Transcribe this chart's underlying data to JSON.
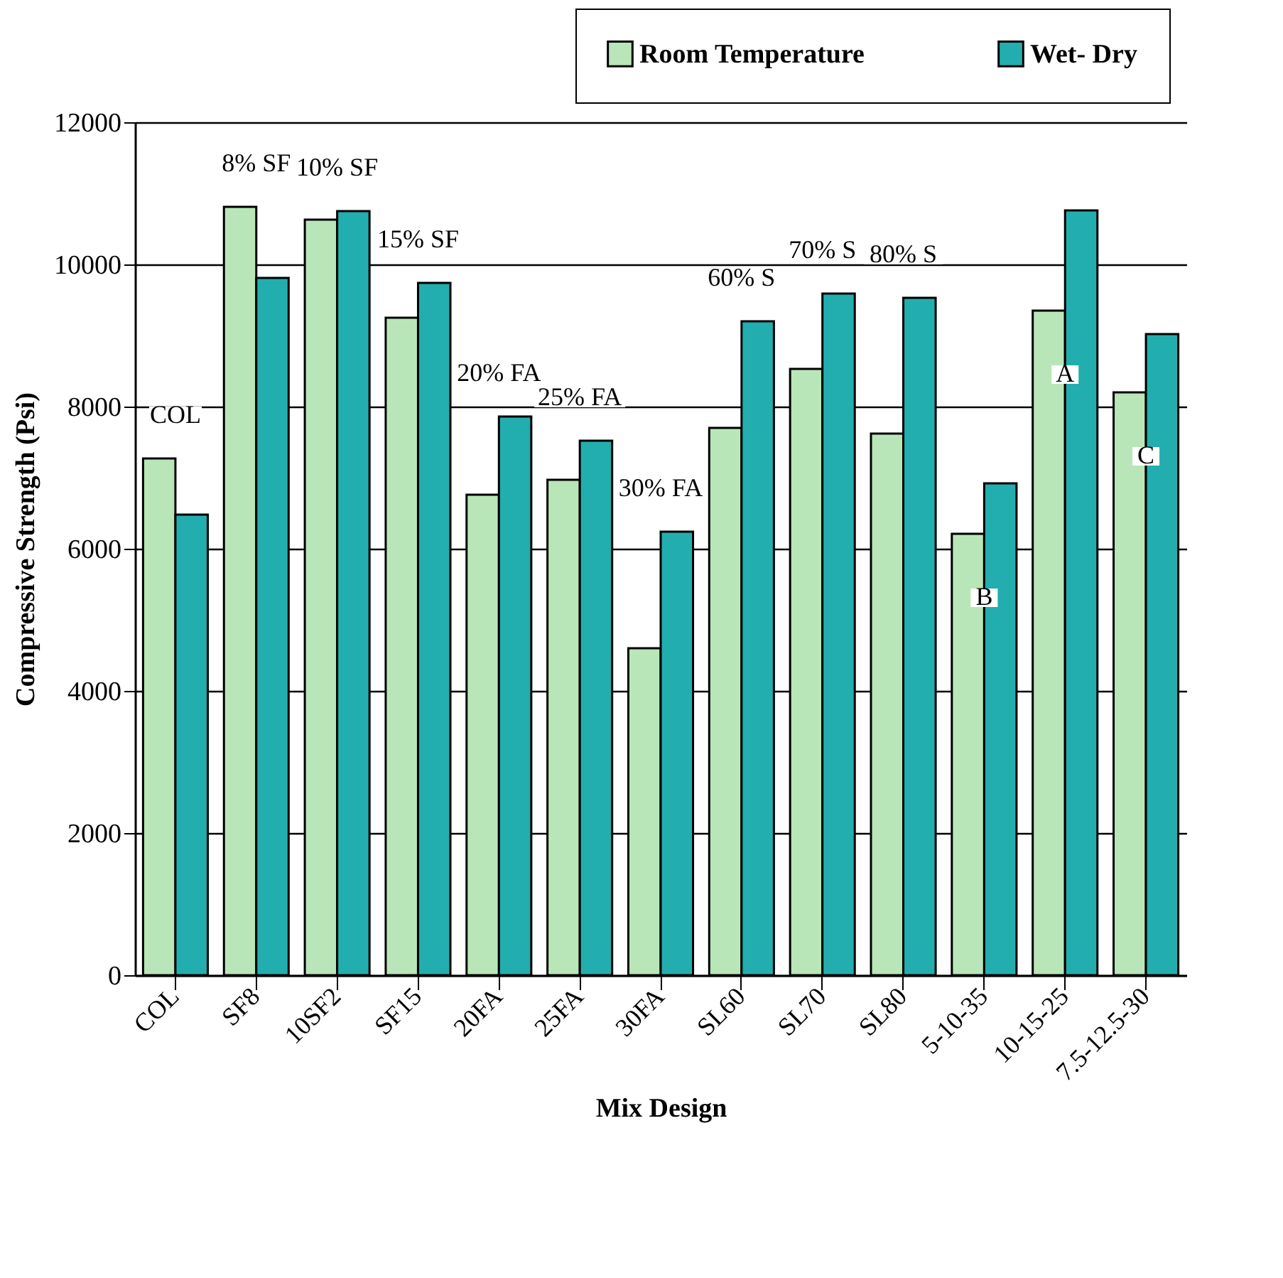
{
  "chart_data": {
    "type": "bar",
    "xlabel": "Mix Design",
    "ylabel": "Compressive Strength (Psi)",
    "categories": [
      "COL",
      "SF8",
      "10SF2",
      "SF15",
      "20FA",
      "25FA",
      "30FA",
      "SL60",
      "SL70",
      "SL80",
      "5-10-35",
      "10-15-25",
      "7.5-12.5-30"
    ],
    "series": [
      {
        "name": "Room Temperature",
        "color": "#b8e6b8",
        "values": [
          7270,
          10810,
          10630,
          9250,
          6760,
          6970,
          4600,
          7700,
          8530,
          7620,
          6210,
          9350,
          8200
        ]
      },
      {
        "name": "Wet- Dry",
        "color": "#22aeae",
        "values": [
          6480,
          9810,
          10750,
          9740,
          7860,
          7520,
          6240,
          9200,
          9590,
          9530,
          6920,
          10760,
          9020
        ]
      }
    ],
    "ylim": [
      0,
      12000
    ],
    "yticks": [
      0,
      2000,
      4000,
      6000,
      8000,
      10000,
      12000
    ],
    "grid": "y",
    "legend": "top right",
    "annotations": [
      {
        "text": "COL",
        "x": "COL",
        "y": 7270
      },
      {
        "text": "8% SF",
        "x": "SF8",
        "y": 10810
      },
      {
        "text": "10% SF",
        "x": "10SF2",
        "y": 10750
      },
      {
        "text": "15% SF",
        "x": "SF15",
        "y": 9740
      },
      {
        "text": "20% FA",
        "x": "20FA",
        "y": 7860
      },
      {
        "text": "25% FA",
        "x": "25FA",
        "y": 7520
      },
      {
        "text": "30% FA",
        "x": "30FA",
        "y": 6240
      },
      {
        "text": "60% S",
        "x": "SL60",
        "y": 9200
      },
      {
        "text": "70% S",
        "x": "SL70",
        "y": 9590
      },
      {
        "text": "80% S",
        "x": "SL80",
        "y": 9530
      },
      {
        "text": "A",
        "x": "10-15-25",
        "y": 9350
      },
      {
        "text": "B",
        "x": "5-10-35",
        "y": 6210
      },
      {
        "text": "C",
        "x": "7.5-12.5-30",
        "y": 8200
      }
    ]
  }
}
